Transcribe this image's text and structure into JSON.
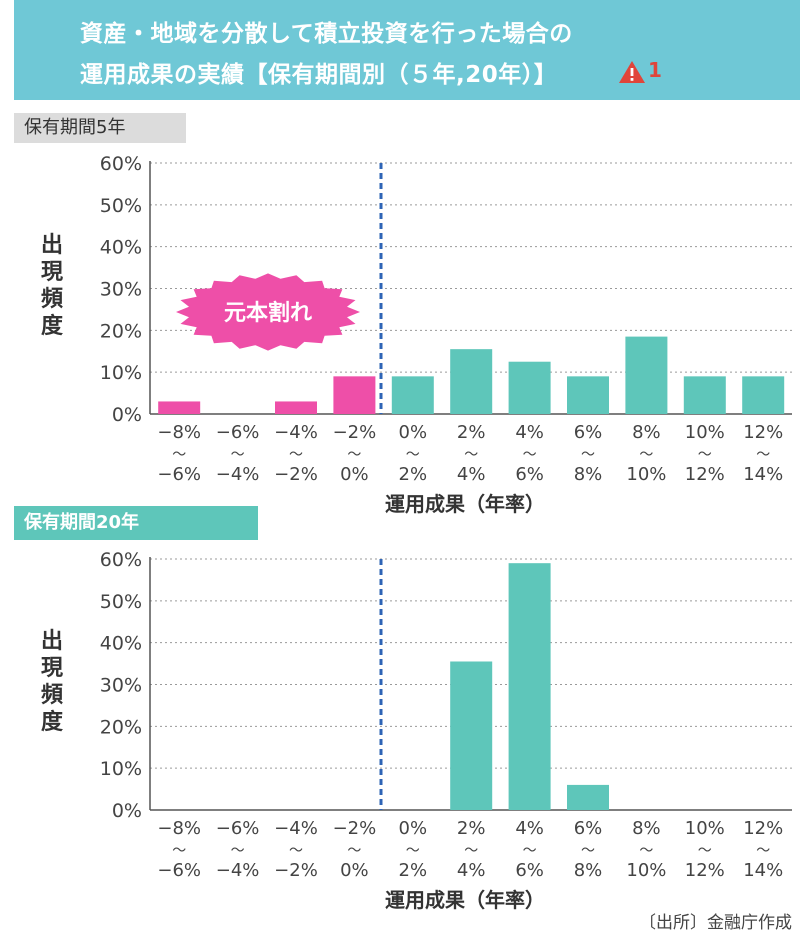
{
  "header": {
    "title_line1": "資産・地域を分散して積立投資を行った場合の",
    "title_line2": "運用成果の実績【保有期間別（５年,20年）】",
    "warning_number": "1"
  },
  "colors": {
    "header_bg": "#6fc8d6",
    "negative_bar": "#ee4fa8",
    "positive_bar": "#5ec6ba",
    "dashed_line": "#2e64b6",
    "label_bg_5y": "#dcdcdc",
    "label_bg_20y": "#5ec6ba"
  },
  "sections": {
    "five_year_label": "保有期間5年",
    "twenty_year_label": "保有期間20年"
  },
  "annotation": {
    "loss_badge": "元本割れ"
  },
  "source": "〔出所〕金融庁作成",
  "chart_data": [
    {
      "type": "bar",
      "title": "保有期間5年",
      "ylabel": "出現頻度",
      "xlabel": "運用成果（年率）",
      "ylim": [
        0,
        60
      ],
      "y_ticks": [
        "0%",
        "10%",
        "20%",
        "30%",
        "40%",
        "50%",
        "60%"
      ],
      "categories": [
        [
          "−8%",
          "〜",
          "−6%"
        ],
        [
          "−6%",
          "〜",
          "−4%"
        ],
        [
          "−4%",
          "〜",
          "−2%"
        ],
        [
          "−2%",
          "〜",
          "0%"
        ],
        [
          "0%",
          "〜",
          "2%"
        ],
        [
          "2%",
          "〜",
          "4%"
        ],
        [
          "4%",
          "〜",
          "6%"
        ],
        [
          "6%",
          "〜",
          "8%"
        ],
        [
          "8%",
          "〜",
          "10%"
        ],
        [
          "10%",
          "〜",
          "12%"
        ],
        [
          "12%",
          "〜",
          "14%"
        ]
      ],
      "values": [
        3,
        0,
        3,
        9,
        9,
        15.5,
        12.5,
        9,
        18.5,
        9,
        9
      ],
      "grid": true
    },
    {
      "type": "bar",
      "title": "保有期間20年",
      "ylabel": "出現頻度",
      "xlabel": "運用成果（年率）",
      "ylim": [
        0,
        60
      ],
      "y_ticks": [
        "0%",
        "10%",
        "20%",
        "30%",
        "40%",
        "50%",
        "60%"
      ],
      "categories": [
        [
          "−8%",
          "〜",
          "−6%"
        ],
        [
          "−6%",
          "〜",
          "−4%"
        ],
        [
          "−4%",
          "〜",
          "−2%"
        ],
        [
          "−2%",
          "〜",
          "0%"
        ],
        [
          "0%",
          "〜",
          "2%"
        ],
        [
          "2%",
          "〜",
          "4%"
        ],
        [
          "4%",
          "〜",
          "6%"
        ],
        [
          "6%",
          "〜",
          "8%"
        ],
        [
          "8%",
          "〜",
          "10%"
        ],
        [
          "10%",
          "〜",
          "12%"
        ],
        [
          "12%",
          "〜",
          "14%"
        ]
      ],
      "values": [
        0,
        0,
        0,
        0,
        0,
        35.5,
        59,
        6,
        0,
        0,
        0
      ],
      "grid": true
    }
  ]
}
